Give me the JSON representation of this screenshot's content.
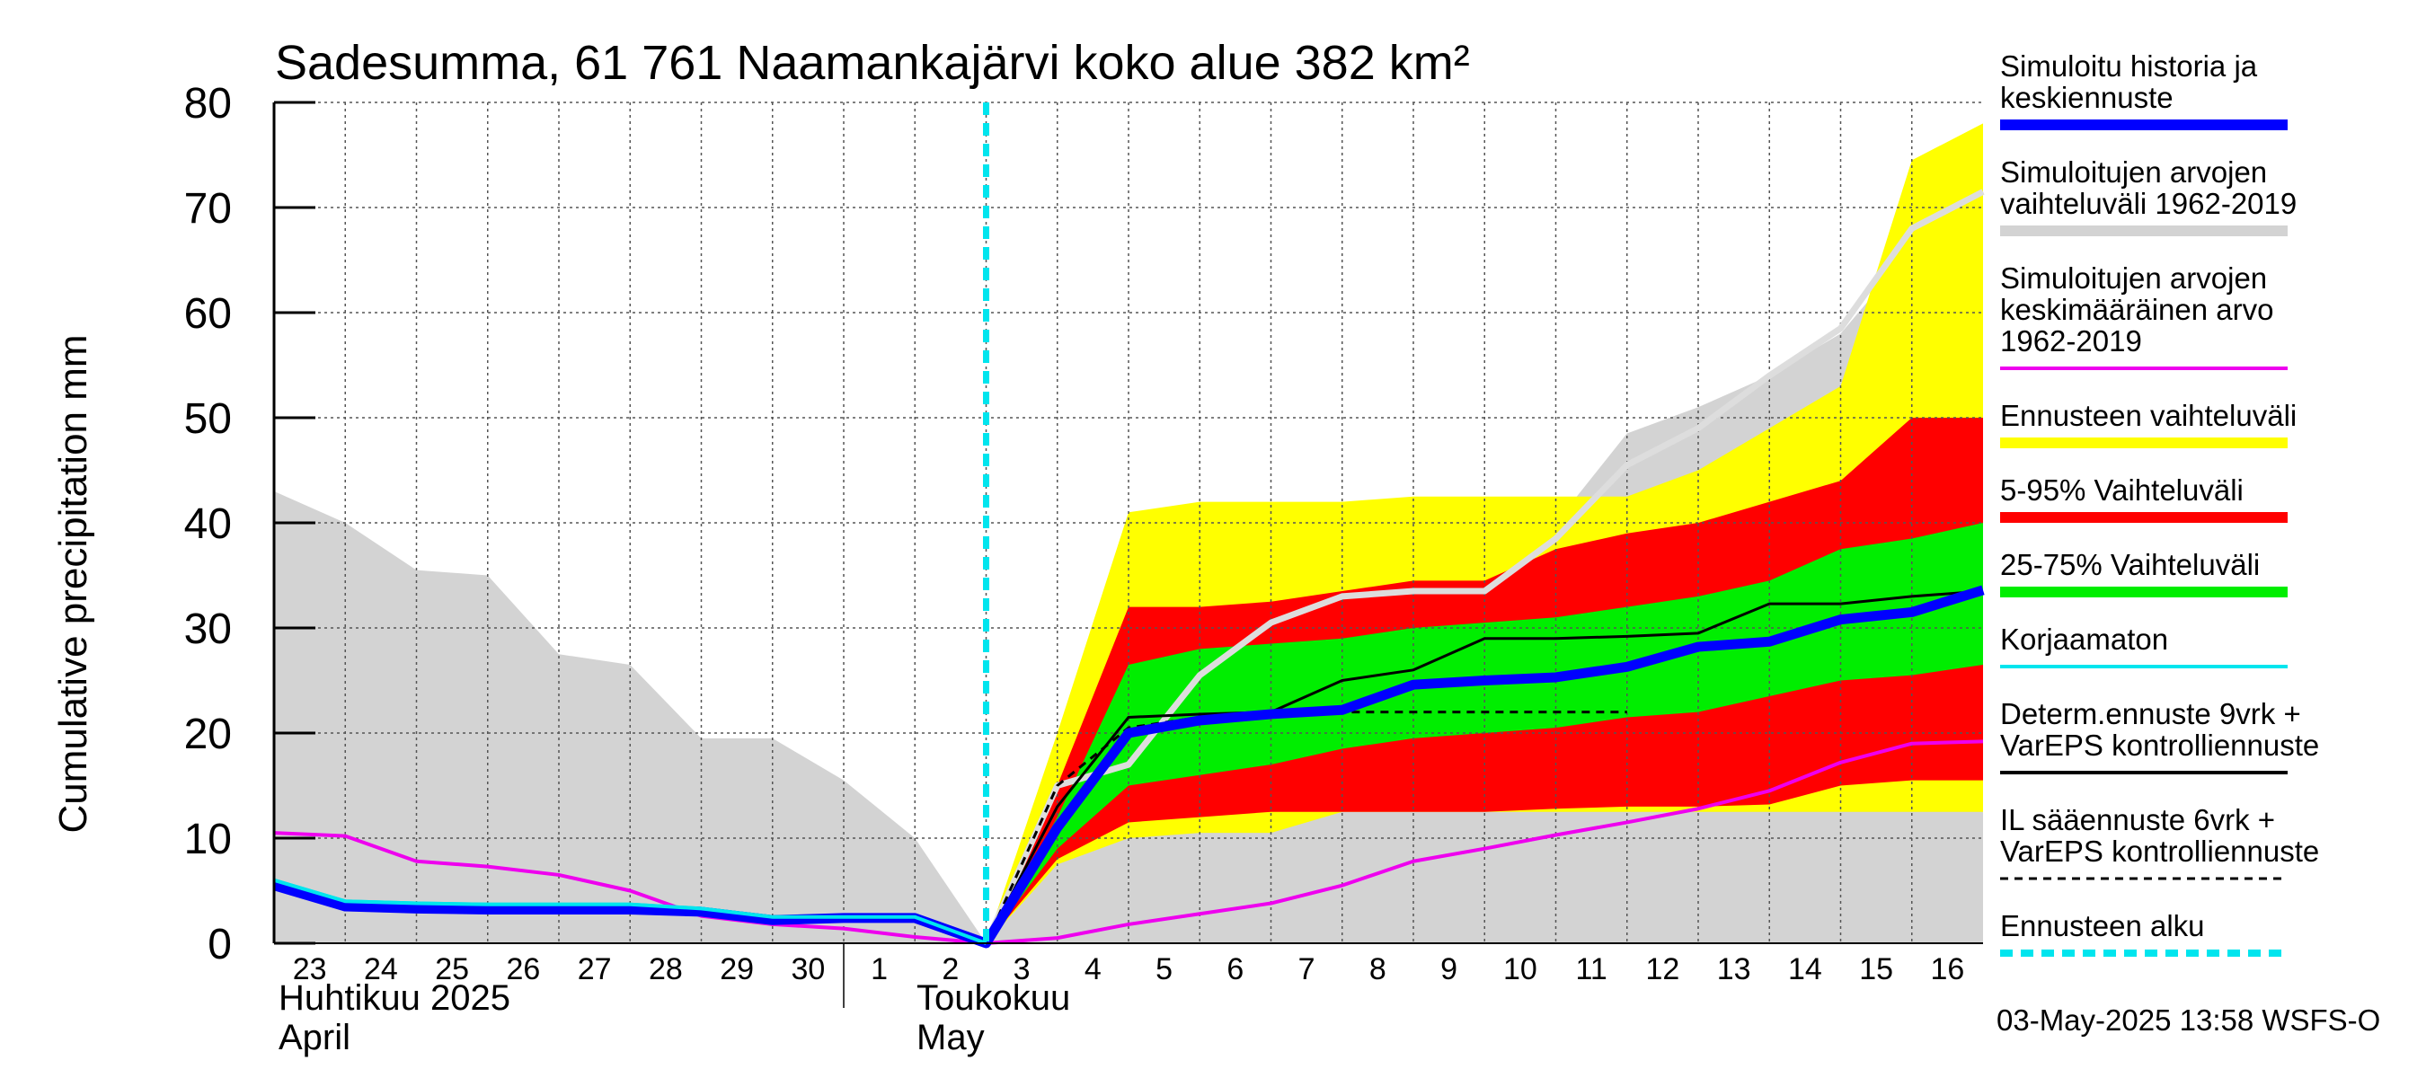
{
  "chart_data": {
    "type": "area",
    "title": "Sadesumma, 61 761 Naamankajärvi koko alue 382 km²",
    "ylabel": "Cumulative precipitation   mm",
    "ylim": [
      0,
      80
    ],
    "yticks": [
      "0",
      "10",
      "20",
      "30",
      "40",
      "50",
      "60",
      "70",
      "80"
    ],
    "xlim": [
      0,
      24
    ],
    "x_ticks": [
      {
        "x": 0,
        "label": "23"
      },
      {
        "x": 1,
        "label": "24"
      },
      {
        "x": 2,
        "label": "25"
      },
      {
        "x": 3,
        "label": "26"
      },
      {
        "x": 4,
        "label": "27"
      },
      {
        "x": 5,
        "label": "28"
      },
      {
        "x": 6,
        "label": "29"
      },
      {
        "x": 7,
        "label": "30"
      },
      {
        "x": 8,
        "label": "1"
      },
      {
        "x": 9,
        "label": "2"
      },
      {
        "x": 10,
        "label": "3"
      },
      {
        "x": 11,
        "label": "4"
      },
      {
        "x": 12,
        "label": "5"
      },
      {
        "x": 13,
        "label": "6"
      },
      {
        "x": 14,
        "label": "7"
      },
      {
        "x": 15,
        "label": "8"
      },
      {
        "x": 16,
        "label": "9"
      },
      {
        "x": 17,
        "label": "10"
      },
      {
        "x": 18,
        "label": "11"
      },
      {
        "x": 19,
        "label": "12"
      },
      {
        "x": 20,
        "label": "13"
      },
      {
        "x": 21,
        "label": "14"
      },
      {
        "x": 22,
        "label": "15"
      },
      {
        "x": 23,
        "label": "16"
      }
    ],
    "month_labels": {
      "april_fi": "Huhtikuu  2025",
      "april_en": "April",
      "may_fi": "Toukokuu",
      "may_en": "May"
    },
    "forecast_start_x": 10,
    "footer": "03-May-2025 13:58 WSFS-O",
    "colors": {
      "grey": "#d3d3d3",
      "yellow": "#ffff00",
      "red": "#ff0000",
      "green": "#00ee00",
      "blue": "#0000ff",
      "cyan": "#00e5ee",
      "magenta": "#ee00ee",
      "lightgrey_line": "#dddddd",
      "black": "#000000"
    },
    "series": [
      {
        "name": "Simuloitujen arvojen vaihteluväli 1962-2019 (band)",
        "type": "band",
        "color": "grey",
        "x": [
          0,
          1,
          2,
          3,
          4,
          5,
          6,
          7,
          8,
          9,
          10,
          11,
          12,
          13,
          14,
          15,
          16,
          17,
          18,
          19,
          20,
          21,
          22,
          23,
          24
        ],
        "upper": [
          43,
          40,
          35.5,
          35,
          27.5,
          26.5,
          19.5,
          19.5,
          15.5,
          10,
          0,
          12,
          20,
          22,
          27,
          30,
          33.5,
          34,
          40,
          48.5,
          51,
          54,
          58,
          66,
          71
        ],
        "lower": [
          0,
          0,
          0,
          0,
          0,
          0,
          0,
          0,
          0,
          0,
          0,
          0,
          0,
          0,
          0,
          0,
          0,
          0,
          0,
          0,
          0,
          0,
          0,
          0,
          0
        ]
      },
      {
        "name": "Ennusteen vaihteluväli",
        "type": "band",
        "color": "yellow",
        "x": [
          10,
          11,
          12,
          13,
          14,
          15,
          16,
          17,
          18,
          19,
          20,
          21,
          22,
          23,
          24
        ],
        "upper": [
          0,
          20,
          41,
          42,
          42,
          42,
          42.5,
          42.5,
          42.5,
          42.5,
          45,
          49,
          53,
          74.5,
          78
        ],
        "lower": [
          0,
          7.5,
          10,
          10.5,
          10.5,
          12.5,
          12.5,
          12.5,
          12.5,
          12.5,
          12.5,
          12.5,
          12.5,
          12.5,
          12.5
        ]
      },
      {
        "name": "5-95% Vaihteluväli",
        "type": "band",
        "color": "red",
        "x": [
          10,
          11,
          12,
          13,
          14,
          15,
          16,
          17,
          18,
          19,
          20,
          21,
          22,
          23,
          24
        ],
        "upper": [
          0,
          15,
          32,
          32,
          32.5,
          33.5,
          34.5,
          34.5,
          37.5,
          39,
          40,
          42,
          44,
          50,
          50
        ],
        "lower": [
          0,
          8,
          11.5,
          12,
          12.5,
          12.5,
          12.5,
          12.5,
          12.8,
          13,
          13,
          13.2,
          15,
          15.5,
          15.5
        ]
      },
      {
        "name": "25-75% Vaihteluväli",
        "type": "band",
        "color": "green",
        "x": [
          10,
          11,
          12,
          13,
          14,
          15,
          16,
          17,
          18,
          19,
          20,
          21,
          22,
          23,
          24
        ],
        "upper": [
          0,
          12,
          26.5,
          28,
          28.5,
          29,
          30,
          30.5,
          31,
          32,
          33,
          34.5,
          37.5,
          38.5,
          40
        ],
        "lower": [
          0,
          9,
          15,
          16,
          17,
          18.5,
          19.5,
          20,
          20.5,
          21.5,
          22,
          23.5,
          25,
          25.5,
          26.5
        ]
      },
      {
        "name": "Simuloitujen arvojen keskimääräinen arvo 1962-2019",
        "type": "line",
        "color": "magenta",
        "x": [
          0,
          1,
          2,
          3,
          4,
          5,
          6,
          7,
          8,
          9,
          10,
          11,
          12,
          13,
          14,
          15,
          16,
          17,
          18,
          19,
          20,
          21,
          22,
          23,
          24
        ],
        "y": [
          10.5,
          10.2,
          7.8,
          7.3,
          6.5,
          5,
          2.6,
          1.8,
          1.4,
          0.6,
          0,
          0.5,
          1.8,
          2.8,
          3.8,
          5.5,
          7.8,
          9,
          10.3,
          11.5,
          12.8,
          14.5,
          17.2,
          19,
          19.2
        ]
      },
      {
        "name": "Simuloitujen arvojen vaihteluväli 1962-2019 (max)",
        "type": "line",
        "color": "lightgrey_line",
        "x": [
          10,
          11,
          12,
          13,
          14,
          15,
          16,
          17,
          18,
          19,
          20,
          21,
          22,
          23,
          24
        ],
        "y": [
          0,
          15,
          17,
          25.5,
          30.5,
          33,
          33.5,
          33.5,
          38.5,
          45.5,
          49,
          54,
          58.5,
          68,
          71.5
        ]
      },
      {
        "name": "IL sääennuste 6vrk + VarEPS kontrolliennuste",
        "type": "line",
        "color": "black",
        "dash": true,
        "x": [
          10,
          11,
          12,
          13,
          14,
          15,
          16,
          17,
          18,
          19
        ],
        "y": [
          0,
          15,
          20.5,
          21.5,
          21.8,
          22,
          22,
          22,
          22,
          22
        ]
      },
      {
        "name": "Determ.ennuste 9vrk + VarEPS kontrolliennuste",
        "type": "line",
        "color": "black",
        "x": [
          10,
          11,
          12,
          13,
          14,
          15,
          16,
          17,
          18,
          19,
          20,
          21,
          22,
          23,
          24
        ],
        "y": [
          0,
          13,
          21.5,
          21.8,
          22,
          25,
          26,
          29,
          29,
          29.2,
          29.5,
          32.3,
          32.3,
          33,
          33.5
        ]
      },
      {
        "name": "Korjaamaton",
        "type": "line",
        "color": "cyan",
        "x": [
          0,
          1,
          2,
          3,
          4,
          5,
          6,
          7,
          8,
          9,
          10
        ],
        "y": [
          6,
          4,
          3.8,
          3.7,
          3.7,
          3.7,
          3.3,
          2.5,
          2.5,
          2.5,
          0
        ]
      },
      {
        "name": "Simuloitu historia ja keskiennuste",
        "type": "line",
        "color": "blue",
        "x": [
          0,
          1,
          2,
          3,
          4,
          5,
          6,
          7,
          8,
          9,
          10,
          11,
          12,
          13,
          14,
          15,
          16,
          17,
          18,
          19,
          20,
          21,
          22,
          23,
          24
        ],
        "y": [
          5.5,
          3.5,
          3.3,
          3.2,
          3.2,
          3.2,
          3.0,
          2.2,
          2.4,
          2.4,
          0,
          11,
          20,
          21.2,
          21.8,
          22.2,
          24.6,
          25,
          25.3,
          26.3,
          28.2,
          28.7,
          30.8,
          31.5,
          33.6
        ]
      }
    ],
    "legend": [
      {
        "lines": [
          "Simuloitu historia ja",
          "keskiennuste"
        ],
        "color": "blue",
        "style": "thick"
      },
      {
        "lines": [
          "Simuloitujen arvojen",
          "vaihteluväli 1962-2019"
        ],
        "color": "grey",
        "style": "thick"
      },
      {
        "lines": [
          "Simuloitujen arvojen",
          "keskimääräinen arvo",
          "   1962-2019"
        ],
        "color": "magenta",
        "style": "thin"
      },
      {
        "lines": [
          "Ennusteen vaihteluväli"
        ],
        "color": "yellow",
        "style": "thick"
      },
      {
        "lines": [
          "5-95% Vaihteluväli"
        ],
        "color": "red",
        "style": "thick"
      },
      {
        "lines": [
          "25-75% Vaihteluväli"
        ],
        "color": "green",
        "style": "thick"
      },
      {
        "lines": [
          "Korjaamaton"
        ],
        "color": "cyan",
        "style": "thin"
      },
      {
        "lines": [
          "Determ.ennuste 9vrk +",
          "VarEPS kontrolliennuste"
        ],
        "color": "black",
        "style": "thin"
      },
      {
        "lines": [
          "IL sääennuste 6vrk  +",
          "  VarEPS kontrolliennuste"
        ],
        "color": "black",
        "style": "dashed"
      },
      {
        "lines": [
          "Ennusteen alku"
        ],
        "color": "cyan",
        "style": "dotted"
      }
    ]
  }
}
